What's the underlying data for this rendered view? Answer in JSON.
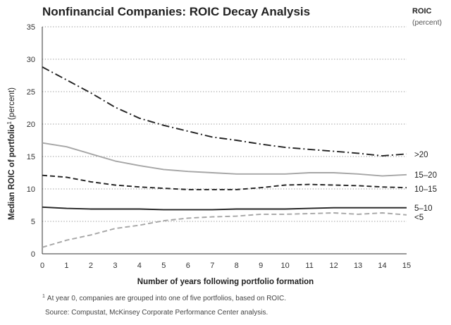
{
  "chart_data": {
    "type": "line",
    "title": "Nonfinancial Companies: ROIC Decay Analysis",
    "xlabel": "Number of years following portfolio formation",
    "ylabel_main": "Median ROIC of portfolio",
    "ylabel_sup": "1",
    "ylabel_tail": "(percent)",
    "legend_title": "ROIC",
    "legend_subtitle": "(percent)",
    "xlim": [
      0,
      15
    ],
    "ylim": [
      0,
      35
    ],
    "x": [
      0,
      1,
      2,
      3,
      4,
      5,
      6,
      7,
      8,
      9,
      10,
      11,
      12,
      13,
      14,
      15
    ],
    "x_ticks": [
      "0",
      "1",
      "2",
      "3",
      "4",
      "5",
      "6",
      "7",
      "8",
      "9",
      "10",
      "11",
      "12",
      "13",
      "14",
      "15"
    ],
    "y_ticks": [
      "0",
      "5",
      "10",
      "15",
      "20",
      "25",
      "30",
      "35"
    ],
    "grid": "horizontal dotted",
    "series": [
      {
        "name": ">20",
        "style": "dashdot",
        "color": "#222222",
        "values": [
          28.8,
          26.8,
          24.8,
          22.6,
          20.9,
          19.8,
          18.9,
          18.0,
          17.5,
          16.9,
          16.4,
          16.1,
          15.8,
          15.5,
          15.1,
          15.4
        ]
      },
      {
        "name": "15–20",
        "style": "solid",
        "color": "#a6a6a6",
        "values": [
          17.1,
          16.5,
          15.4,
          14.3,
          13.6,
          13.0,
          12.7,
          12.5,
          12.3,
          12.3,
          12.3,
          12.5,
          12.5,
          12.3,
          12.0,
          12.2
        ]
      },
      {
        "name": "10–15",
        "style": "dashed",
        "color": "#222222",
        "values": [
          12.1,
          11.8,
          11.1,
          10.6,
          10.3,
          10.1,
          9.9,
          9.9,
          9.9,
          10.2,
          10.6,
          10.7,
          10.6,
          10.5,
          10.3,
          10.2
        ]
      },
      {
        "name": "5–10",
        "style": "solid",
        "color": "#222222",
        "values": [
          7.2,
          7.0,
          6.9,
          6.9,
          6.9,
          6.8,
          6.8,
          6.8,
          6.9,
          6.9,
          6.9,
          7.0,
          7.1,
          7.1,
          7.1,
          7.1
        ]
      },
      {
        "name": "<5",
        "style": "dashed",
        "color": "#a6a6a6",
        "values": [
          1.0,
          2.1,
          2.9,
          3.9,
          4.4,
          5.1,
          5.5,
          5.7,
          5.8,
          6.1,
          6.1,
          6.2,
          6.3,
          6.1,
          6.3,
          6.0
        ]
      }
    ],
    "footnote_sup": "1",
    "footnote": "At year 0, companies are grouped into one of five portfolios, based on ROIC.",
    "source": "Source: Compustat, McKinsey Corporate Performance Center analysis."
  }
}
